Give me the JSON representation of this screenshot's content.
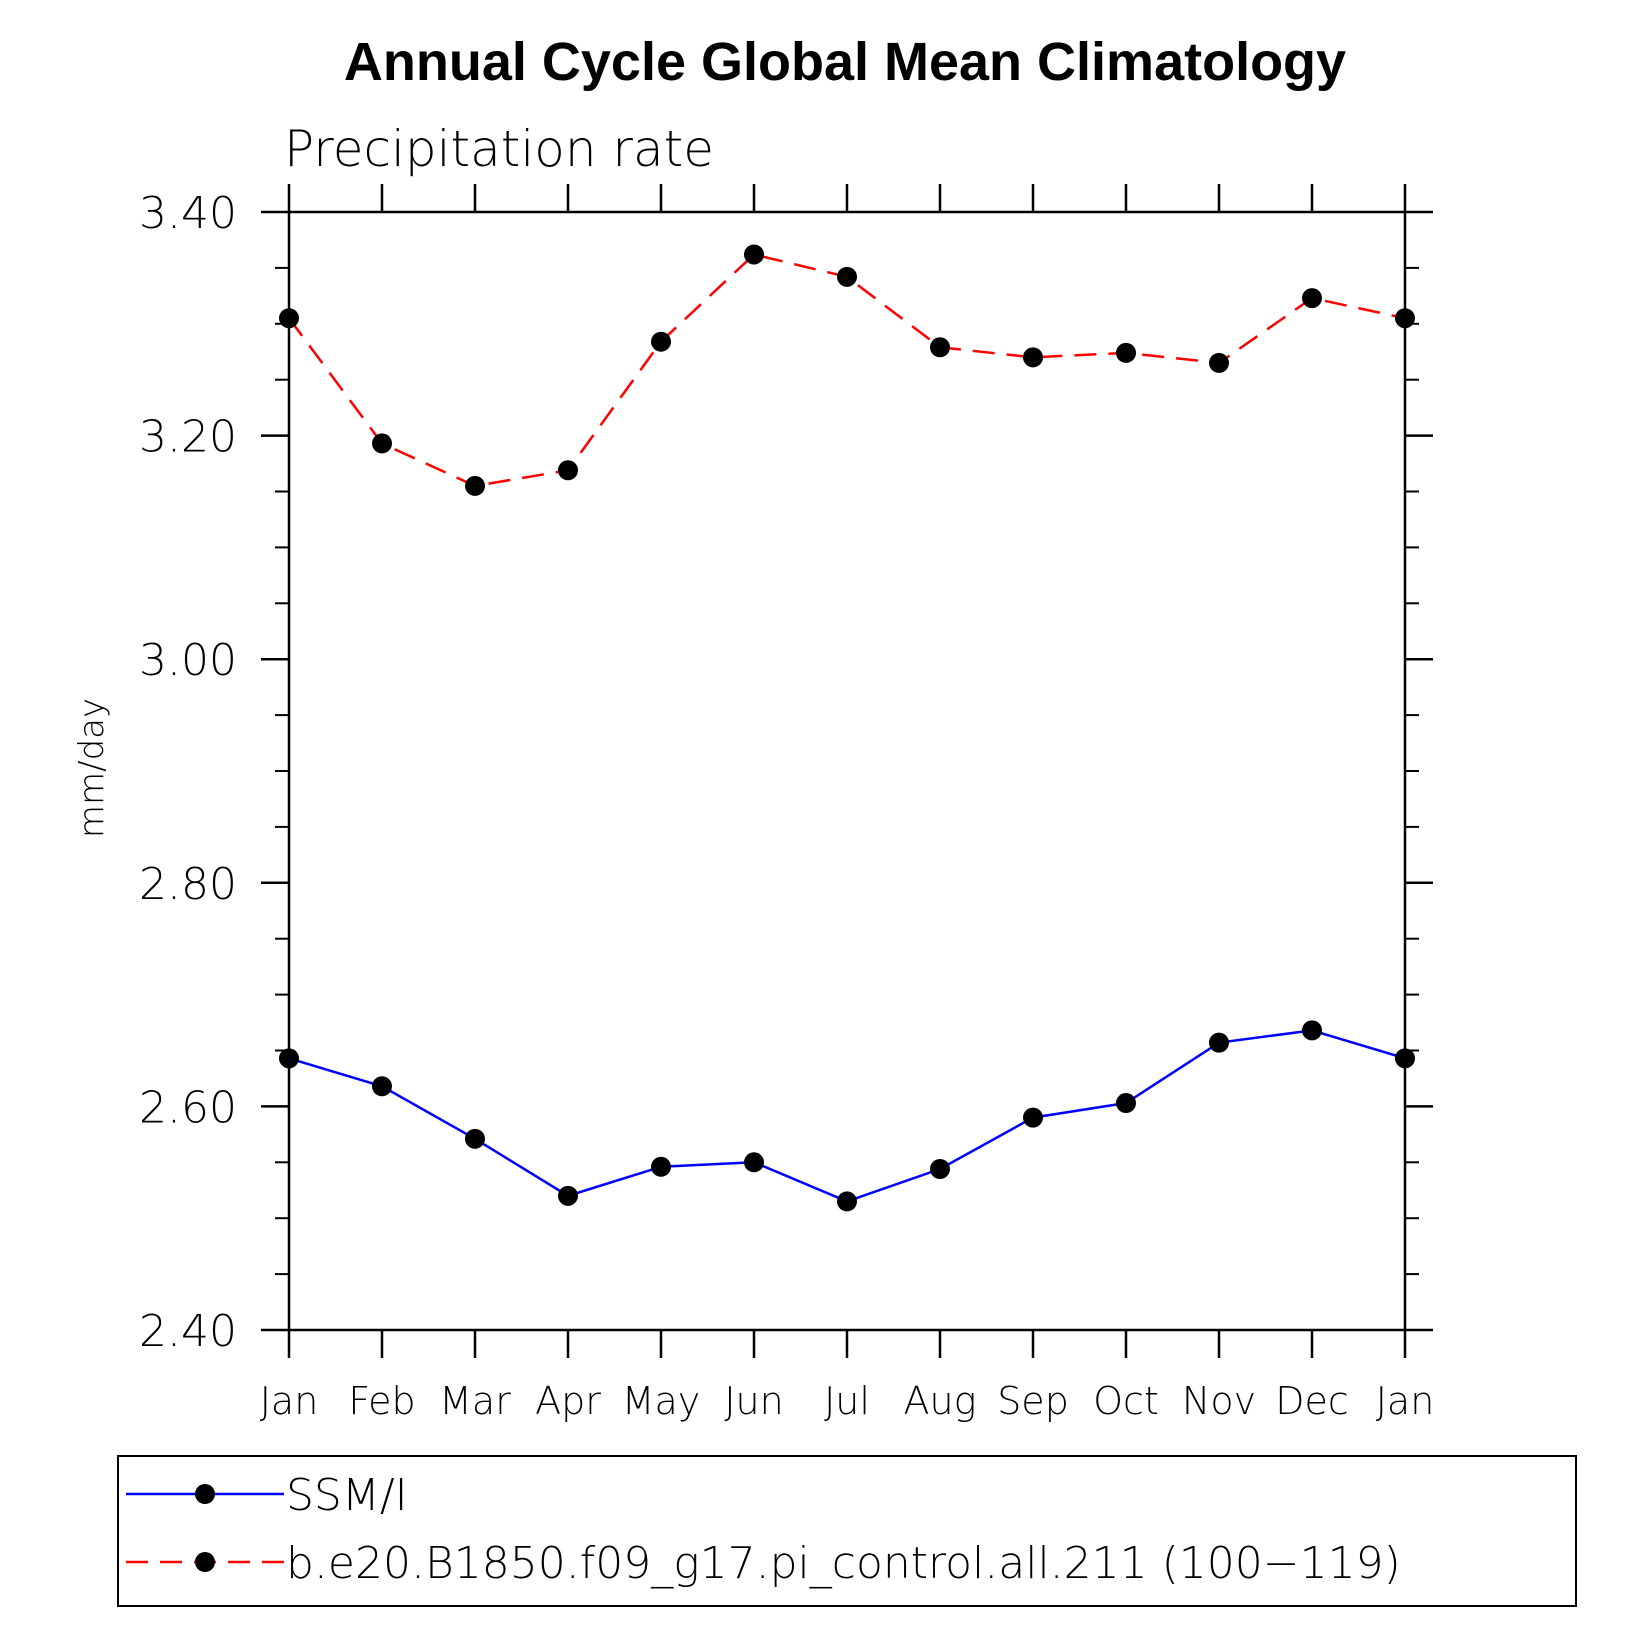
{
  "chart_data": {
    "type": "line",
    "title": "Annual Cycle Global Mean Climatology",
    "subtitle": "Precipitation rate",
    "xlabel": "",
    "ylabel": "mm/day",
    "categories": [
      "Jan",
      "Feb",
      "Mar",
      "Apr",
      "May",
      "Jun",
      "Jul",
      "Aug",
      "Sep",
      "Oct",
      "Nov",
      "Dec",
      "Jan"
    ],
    "ylim": [
      2.4,
      3.4
    ],
    "yticks": [
      2.4,
      2.6,
      2.8,
      3.0,
      3.2,
      3.4
    ],
    "ytick_labels": [
      "2.40",
      "2.60",
      "2.80",
      "3.00",
      "3.20",
      "3.40"
    ],
    "y_minor_step": 0.05,
    "legend_position": "bottom",
    "series": [
      {
        "name": "SSM/I",
        "color": "#0000ff",
        "dash": "solid",
        "marker": "filled-circle",
        "values": [
          2.643,
          2.618,
          2.571,
          2.52,
          2.546,
          2.55,
          2.515,
          2.544,
          2.59,
          2.603,
          2.657,
          2.668,
          2.643
        ]
      },
      {
        "name": "b.e20.B1850.f09_g17.pi_control.all.211 (100−119)",
        "color": "#ff0000",
        "dash": "dashed",
        "marker": "filled-circle",
        "values": [
          3.305,
          3.193,
          3.155,
          3.169,
          3.284,
          3.362,
          3.342,
          3.279,
          3.27,
          3.274,
          3.265,
          3.323,
          3.305
        ]
      }
    ]
  }
}
